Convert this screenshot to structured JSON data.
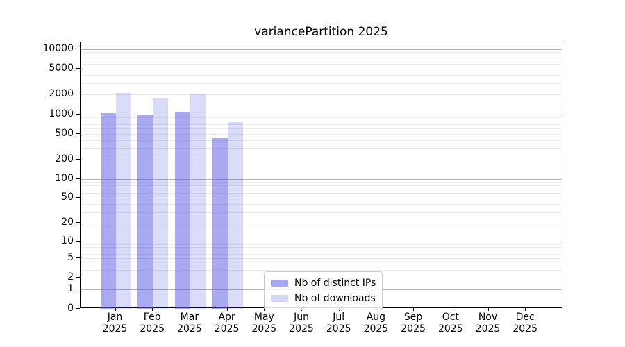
{
  "title": "variancePartition 2025",
  "colors": {
    "background": "#ffffff",
    "axis": "#000000",
    "grid_major": "#b3b3b3",
    "grid_minor": "#ececec",
    "bar_distinct_ips": "#a9a9f2",
    "bar_downloads": "#d8d8f8"
  },
  "chart_data": {
    "type": "bar",
    "title": "variancePartition 2025",
    "xlabel": "",
    "ylabel": "",
    "grid": true,
    "legend_position": "lower center",
    "categories": [
      "Jan 2025",
      "Feb 2025",
      "Mar 2025",
      "Apr 2025",
      "May 2025",
      "Jun 2025",
      "Jul 2025",
      "Aug 2025",
      "Sep 2025",
      "Oct 2025",
      "Nov 2025",
      "Dec 2025"
    ],
    "x_tick_month": [
      "Jan",
      "Feb",
      "Mar",
      "Apr",
      "May",
      "Jun",
      "Jul",
      "Aug",
      "Sep",
      "Oct",
      "Nov",
      "Dec"
    ],
    "x_tick_year": "2025",
    "series": [
      {
        "name": "Nb of distinct IPs",
        "color": "#a9a9f2",
        "fill": "rgba(90,90,230,0.52)",
        "values": [
          1050,
          970,
          1100,
          430,
          0,
          0,
          0,
          0,
          0,
          0,
          0,
          0
        ]
      },
      {
        "name": "Nb of downloads",
        "color": "#d8d8f8",
        "fill": "rgba(90,90,230,0.22)",
        "values": [
          2100,
          1780,
          2060,
          755,
          0,
          0,
          0,
          0,
          0,
          0,
          0,
          0
        ]
      }
    ],
    "y_axis": {
      "scale": "log1p",
      "min_value": 0,
      "max_value": 12790,
      "tick_values": [
        10000,
        5000,
        2000,
        1000,
        500,
        200,
        100,
        50,
        20,
        10,
        5,
        2,
        1,
        0
      ],
      "tick_labels": [
        "10000",
        "5000",
        "2000",
        "1000",
        "500",
        "200",
        "100",
        "50",
        "20",
        "10",
        "5",
        "2",
        "1",
        "0"
      ],
      "major_gridline_values": [
        10000,
        1000,
        100,
        10,
        1
      ],
      "minor_gridline_values": [
        3,
        4,
        6,
        7,
        8,
        9,
        30,
        40,
        60,
        70,
        80,
        90,
        300,
        400,
        600,
        700,
        800,
        900,
        3000,
        4000,
        6000,
        7000,
        8000,
        9000
      ]
    }
  }
}
